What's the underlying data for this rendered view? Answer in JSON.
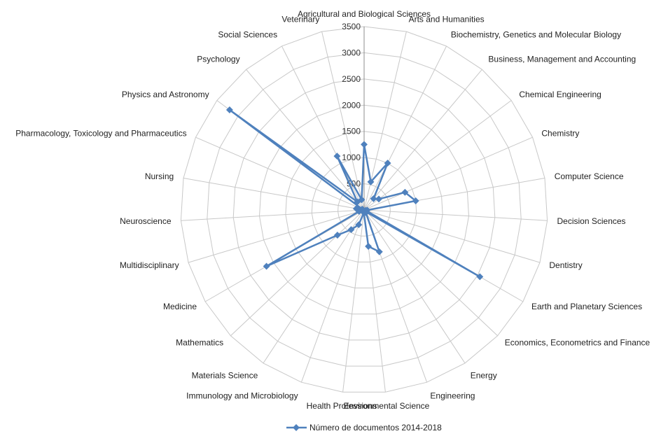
{
  "chart_data": {
    "type": "radar",
    "categories": [
      "Agricultural and Biological Sciences",
      "Arts and Humanities",
      "Biochemistry, Genetics and Molecular Biology",
      "Business, Management and Accounting",
      "Chemical Engineering",
      "Chemistry",
      "Computer Science",
      "Decision Sciences",
      "Dentistry",
      "Earth and Planetary Sciences",
      "Economics, Econometrics and Finance",
      "Energy",
      "Engineering",
      "Environmental Science",
      "Health Professions",
      "Immunology and Microbiology",
      "Materials Science",
      "Mathematics",
      "Medicine",
      "Multidisciplinary",
      "Neuroscience",
      "Nursing",
      "Pharmacology,  Toxicology and Pharmaceutics",
      "Physics and Astronomy",
      "Psychology",
      "Social Sciences",
      "Veterinary"
    ],
    "series": [
      {
        "name": "Número de documentos 2014-2018",
        "color": "#4f81bd",
        "values": [
          1250,
          550,
          1000,
          280,
          350,
          850,
          1000,
          60,
          30,
          2550,
          60,
          60,
          850,
          700,
          50,
          300,
          450,
          700,
          2150,
          100,
          50,
          150,
          40,
          3200,
          200,
          1150,
          200
        ]
      }
    ],
    "rlim": [
      0,
      3500
    ],
    "ticks": [
      "0",
      "500",
      "1000",
      "1500",
      "2000",
      "2500",
      "3000",
      "3500"
    ],
    "grid": true,
    "legend_position": "bottom"
  }
}
